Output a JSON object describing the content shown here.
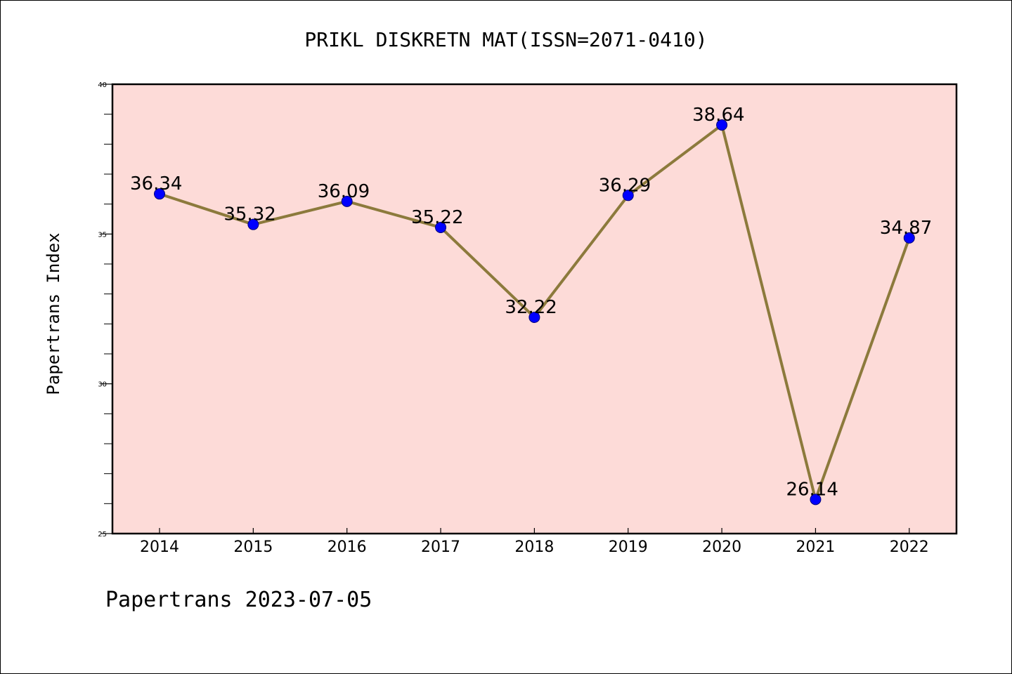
{
  "chart_data": {
    "type": "line",
    "title": "PRIKL DISKRETN MAT(ISSN=2071-0410)",
    "xlabel": "",
    "ylabel": "Papertrans Index",
    "categories": [
      "2014",
      "2015",
      "2016",
      "2017",
      "2018",
      "2019",
      "2020",
      "2021",
      "2022"
    ],
    "series": [
      {
        "values": [
          36.34,
          35.32,
          36.09,
          35.22,
          32.22,
          36.29,
          38.64,
          26.14,
          34.87
        ],
        "labels": [
          "36.34",
          "35.32",
          "36.09",
          "35.22",
          "32.22",
          "36.29",
          "38.64",
          "26.14",
          "34.87"
        ],
        "line_color": "#8c7a3c",
        "marker_color": "#0000ff"
      }
    ],
    "ylim": [
      25,
      40
    ],
    "yticks": [
      "25",
      "30",
      "35",
      "40"
    ],
    "plot_background": "#fddbd8",
    "grid": false,
    "legend": "none"
  },
  "footer": "Papertrans 2023-07-05"
}
